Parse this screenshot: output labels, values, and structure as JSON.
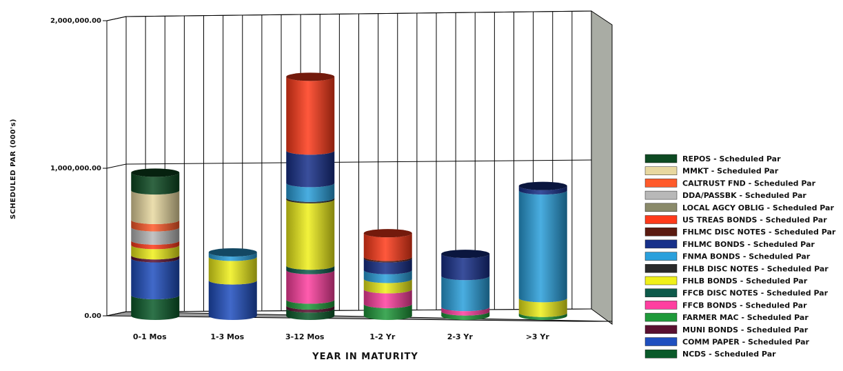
{
  "chart_data": {
    "type": "bar",
    "stacked": true,
    "style": "3d-cylinder",
    "title": "",
    "xlabel": "YEAR IN MATURITY",
    "ylabel": "SCHEDULED PAR (000's)",
    "ylim": [
      0,
      2000000
    ],
    "yticks": [
      "0.00",
      "1,000,000.00",
      "2,000,000.00"
    ],
    "grid": true,
    "legend_position": "right",
    "categories": [
      "0-1 Mos",
      "1-3 Mos",
      "3-12 Mos",
      "1-2 Yr",
      "2-3 Yr",
      ">3 Yr"
    ],
    "series": [
      {
        "name": "NCDS - Scheduled Par",
        "color": "#0a5a2a",
        "values": [
          140000,
          0,
          50000,
          0,
          0,
          0
        ]
      },
      {
        "name": "COMM PAPER - Scheduled Par",
        "color": "#1f4fbf",
        "values": [
          250000,
          240000,
          0,
          0,
          0,
          0
        ]
      },
      {
        "name": "MUNI BONDS - Scheduled Par",
        "color": "#5a1030",
        "values": [
          20000,
          0,
          20000,
          0,
          0,
          0
        ]
      },
      {
        "name": "FARMER MAC - Scheduled Par",
        "color": "#1f9a3a",
        "values": [
          0,
          0,
          40000,
          80000,
          30000,
          20000
        ]
      },
      {
        "name": "FFCB BONDS - Scheduled Par",
        "color": "#ff3fa0",
        "values": [
          0,
          0,
          200000,
          100000,
          30000,
          0
        ]
      },
      {
        "name": "FFCB DISC NOTES - Scheduled Par",
        "color": "#0d5a4a",
        "values": [
          0,
          0,
          30000,
          0,
          0,
          0
        ]
      },
      {
        "name": "FHLB BONDS - Scheduled Par",
        "color": "#f0f01a",
        "values": [
          70000,
          160000,
          450000,
          70000,
          0,
          100000
        ]
      },
      {
        "name": "FHLB DISC NOTES - Scheduled Par",
        "color": "#2a2a2a",
        "values": [
          0,
          0,
          10000,
          0,
          0,
          0
        ]
      },
      {
        "name": "FNMA BONDS - Scheduled Par",
        "color": "#2aa0dc",
        "values": [
          0,
          30000,
          100000,
          60000,
          210000,
          730000
        ]
      },
      {
        "name": "FHLMC BONDS - Scheduled Par",
        "color": "#17308a",
        "values": [
          0,
          0,
          220000,
          80000,
          150000,
          30000
        ]
      },
      {
        "name": "FHLMC DISC NOTES - Scheduled Par",
        "color": "#5a1a10",
        "values": [
          0,
          0,
          0,
          10000,
          0,
          0
        ]
      },
      {
        "name": "US TREAS BONDS - Scheduled Par",
        "color": "#ff3a1a",
        "values": [
          30000,
          0,
          500000,
          160000,
          0,
          0
        ]
      },
      {
        "name": "LOCAL AGCY OBLIG - Scheduled Par",
        "color": "#8a8a6a",
        "values": [
          0,
          0,
          0,
          0,
          0,
          0
        ]
      },
      {
        "name": "DDA/PASSBK - Scheduled Par",
        "color": "#b8b8b8",
        "values": [
          90000,
          0,
          0,
          0,
          0,
          0
        ]
      },
      {
        "name": "CALTRUST FND - Scheduled Par",
        "color": "#ff5a2a",
        "values": [
          50000,
          0,
          0,
          0,
          0,
          0
        ]
      },
      {
        "name": "MMKT - Scheduled Par",
        "color": "#e8d8a0",
        "values": [
          200000,
          0,
          0,
          0,
          0,
          0
        ]
      },
      {
        "name": "REPOS - Scheduled Par",
        "color": "#0d4a22",
        "values": [
          120000,
          0,
          0,
          0,
          0,
          0
        ]
      }
    ],
    "legend_order": [
      16,
      15,
      14,
      13,
      12,
      11,
      10,
      9,
      8,
      7,
      6,
      5,
      4,
      3,
      2,
      1,
      0
    ]
  }
}
